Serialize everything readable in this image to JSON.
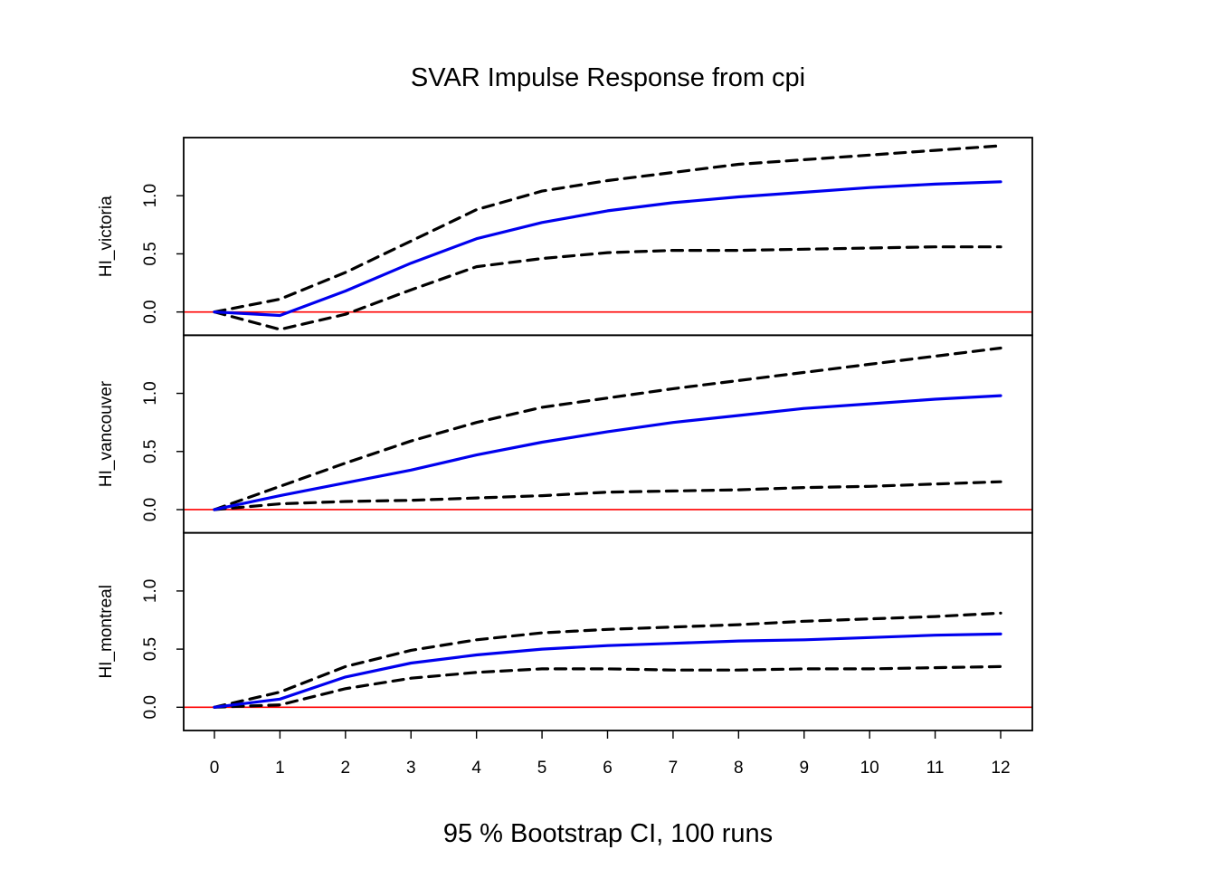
{
  "chart_data": {
    "type": "line",
    "title": "SVAR Impulse Response from cpi",
    "xlabel": "95 % Bootstrap CI,  100 runs",
    "x": [
      0,
      1,
      2,
      3,
      4,
      5,
      6,
      7,
      8,
      9,
      10,
      11,
      12
    ],
    "x_tick_labels": [
      "0",
      "1",
      "2",
      "3",
      "4",
      "5",
      "6",
      "7",
      "8",
      "9",
      "10",
      "11",
      "12"
    ],
    "ylim": [
      -0.2,
      1.5
    ],
    "y_ticks": [
      0.0,
      0.5,
      1.0
    ],
    "y_tick_labels": [
      "0.0",
      "0.5",
      "1.0"
    ],
    "zero_line": 0.0,
    "colors": {
      "response": "#0000ee",
      "bounds": "#000000",
      "zero_line": "#ff0000",
      "frame": "#000000"
    },
    "panels": [
      {
        "ylabel": "HI_victoria",
        "series": [
          {
            "role": "response",
            "values": [
              0.0,
              -0.03,
              0.18,
              0.42,
              0.63,
              0.77,
              0.87,
              0.94,
              0.99,
              1.03,
              1.07,
              1.1,
              1.12
            ]
          },
          {
            "role": "upper",
            "values": [
              0.0,
              0.11,
              0.34,
              0.61,
              0.88,
              1.04,
              1.13,
              1.2,
              1.27,
              1.31,
              1.35,
              1.39,
              1.43
            ]
          },
          {
            "role": "lower",
            "values": [
              0.0,
              -0.15,
              -0.02,
              0.19,
              0.39,
              0.46,
              0.51,
              0.53,
              0.53,
              0.54,
              0.55,
              0.56,
              0.56
            ]
          }
        ]
      },
      {
        "ylabel": "HI_vancouver",
        "series": [
          {
            "role": "response",
            "values": [
              0.0,
              0.12,
              0.23,
              0.34,
              0.47,
              0.58,
              0.67,
              0.75,
              0.81,
              0.87,
              0.91,
              0.95,
              0.98
            ]
          },
          {
            "role": "upper",
            "values": [
              0.0,
              0.2,
              0.4,
              0.59,
              0.75,
              0.88,
              0.96,
              1.04,
              1.11,
              1.18,
              1.25,
              1.32,
              1.39
            ]
          },
          {
            "role": "lower",
            "values": [
              0.0,
              0.05,
              0.07,
              0.08,
              0.1,
              0.12,
              0.15,
              0.16,
              0.17,
              0.19,
              0.2,
              0.22,
              0.24
            ]
          }
        ]
      },
      {
        "ylabel": "HI_montreal",
        "series": [
          {
            "role": "response",
            "values": [
              0.0,
              0.07,
              0.26,
              0.38,
              0.45,
              0.5,
              0.53,
              0.55,
              0.57,
              0.58,
              0.6,
              0.62,
              0.63
            ]
          },
          {
            "role": "upper",
            "values": [
              0.0,
              0.13,
              0.35,
              0.49,
              0.58,
              0.64,
              0.67,
              0.69,
              0.71,
              0.74,
              0.76,
              0.78,
              0.81
            ]
          },
          {
            "role": "lower",
            "values": [
              0.0,
              0.02,
              0.16,
              0.25,
              0.3,
              0.33,
              0.33,
              0.32,
              0.32,
              0.33,
              0.33,
              0.34,
              0.35
            ]
          }
        ]
      }
    ]
  }
}
